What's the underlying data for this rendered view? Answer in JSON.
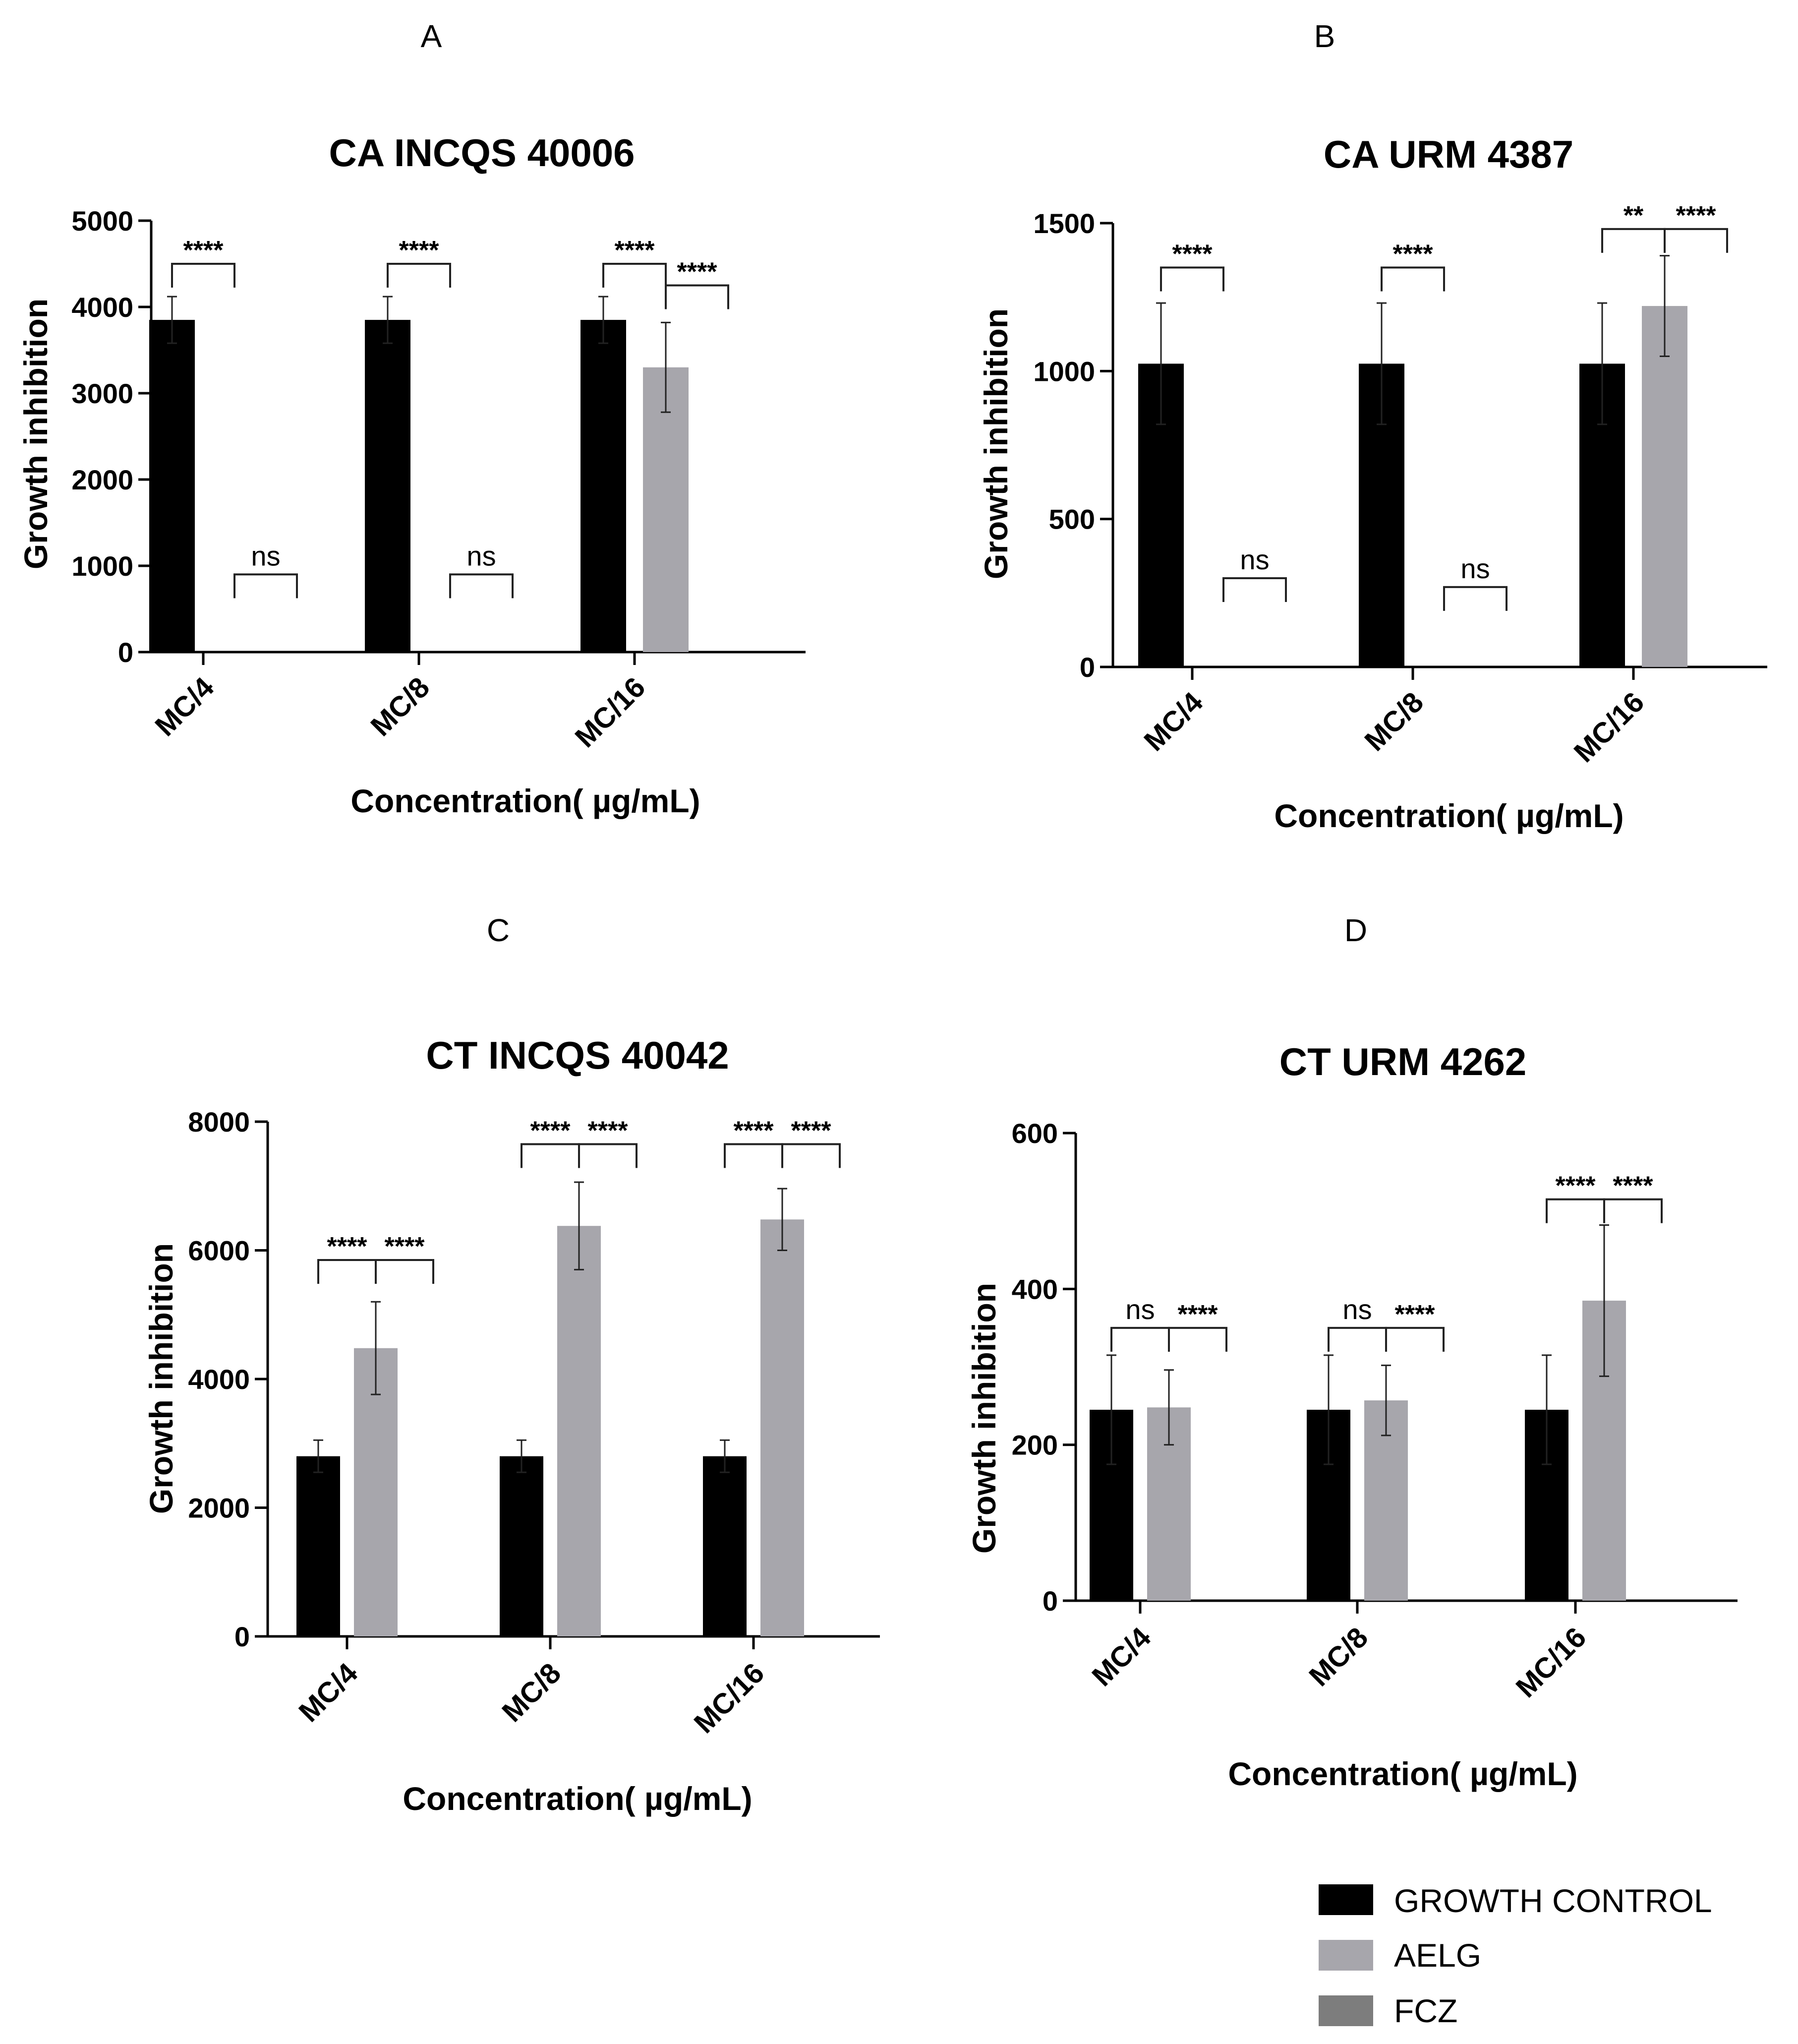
{
  "panels": [
    {
      "letter": "A"
    },
    {
      "letter": "B"
    },
    {
      "letter": "C"
    },
    {
      "letter": "D"
    }
  ],
  "colors": {
    "growth_control": "#000000",
    "aelg": "#a7a6ac",
    "fcz": "#7d7d7d"
  },
  "chart_data": [
    {
      "type": "bar",
      "title": "CA INCQS 40006",
      "xlabel": "Concentration( µg/mL)",
      "ylabel": "Growth inhibition",
      "ylim": [
        0,
        5000
      ],
      "yticks": [
        "0",
        "1000",
        "2000",
        "3000",
        "4000",
        "5000"
      ],
      "categories": [
        "MC/4",
        "MC/8",
        "MC/16"
      ],
      "series": [
        {
          "name": "GROWTH CONTROL",
          "values": [
            3850,
            3850,
            3850
          ],
          "errors": [
            270,
            270,
            270
          ]
        },
        {
          "name": "AELG",
          "values": [
            0,
            0,
            3300
          ],
          "errors": [
            0,
            0,
            520
          ]
        }
      ],
      "significance": [
        {
          "category": "MC/4",
          "label": "****",
          "pair": "growth-aelg",
          "y": 4500
        },
        {
          "category": "MC/4",
          "label": "ns",
          "pair": "aelg-fcz",
          "y": 900
        },
        {
          "category": "MC/8",
          "label": "****",
          "pair": "growth-aelg",
          "y": 4500
        },
        {
          "category": "MC/8",
          "label": "ns",
          "pair": "aelg-fcz",
          "y": 900
        },
        {
          "category": "MC/16",
          "label": "****",
          "pair": "growth-aelg",
          "y": 4500
        },
        {
          "category": "MC/16",
          "label": "****",
          "pair": "aelg-fcz",
          "y": 4250
        }
      ]
    },
    {
      "type": "bar",
      "title": "CA URM 4387",
      "xlabel": "Concentration( µg/mL)",
      "ylabel": "Growth inhibition",
      "ylim": [
        0,
        1500
      ],
      "yticks": [
        "0",
        "500",
        "1000",
        "1500"
      ],
      "categories": [
        "MC/4",
        "MC/8",
        "MC/16"
      ],
      "series": [
        {
          "name": "GROWTH CONTROL",
          "values": [
            1025,
            1025,
            1025
          ],
          "errors": [
            205,
            205,
            205
          ]
        },
        {
          "name": "AELG",
          "values": [
            0,
            0,
            1220
          ],
          "errors": [
            0,
            0,
            170
          ]
        }
      ],
      "significance": [
        {
          "category": "MC/4",
          "label": "****",
          "pair": "growth-aelg",
          "y": 1350
        },
        {
          "category": "MC/4",
          "label": "ns",
          "pair": "aelg-fcz",
          "y": 300
        },
        {
          "category": "MC/8",
          "label": "****",
          "pair": "growth-aelg",
          "y": 1350
        },
        {
          "category": "MC/8",
          "label": "ns",
          "pair": "aelg-fcz",
          "y": 270
        },
        {
          "category": "MC/16",
          "label": "**",
          "pair": "growth-aelg",
          "y": 1480
        },
        {
          "category": "MC/16",
          "label": "****",
          "pair": "aelg-fcz",
          "y": 1480
        }
      ]
    },
    {
      "type": "bar",
      "title": "CT INCQS 40042",
      "xlabel": "Concentration( µg/mL)",
      "ylabel": "Growth inhibition",
      "ylim": [
        0,
        8000
      ],
      "yticks": [
        "0",
        "2000",
        "4000",
        "6000",
        "8000"
      ],
      "categories": [
        "MC/4",
        "MC/8",
        "MC/16"
      ],
      "series": [
        {
          "name": "GROWTH CONTROL",
          "values": [
            2800,
            2800,
            2800
          ],
          "errors": [
            250,
            250,
            250
          ]
        },
        {
          "name": "AELG",
          "values": [
            4480,
            6380,
            6480
          ],
          "errors": [
            720,
            680,
            480
          ]
        }
      ],
      "significance": [
        {
          "category": "MC/4",
          "label": "****",
          "pair": "growth-aelg",
          "y": 5850
        },
        {
          "category": "MC/4",
          "label": "****",
          "pair": "aelg-fcz",
          "y": 5850
        },
        {
          "category": "MC/8",
          "label": "****",
          "pair": "growth-aelg",
          "y": 7650
        },
        {
          "category": "MC/8",
          "label": "****",
          "pair": "aelg-fcz",
          "y": 7650
        },
        {
          "category": "MC/16",
          "label": "****",
          "pair": "growth-aelg",
          "y": 7650
        },
        {
          "category": "MC/16",
          "label": "****",
          "pair": "aelg-fcz",
          "y": 7650
        }
      ]
    },
    {
      "type": "bar",
      "title": "CT URM 4262",
      "xlabel": "Concentration( µg/mL)",
      "ylabel": "Growth inhibition",
      "ylim": [
        0,
        600
      ],
      "yticks": [
        "0",
        "200",
        "400",
        "600"
      ],
      "categories": [
        "MC/4",
        "MC/8",
        "MC/16"
      ],
      "series": [
        {
          "name": "GROWTH CONTROL",
          "values": [
            245,
            245,
            245
          ],
          "errors": [
            70,
            70,
            70
          ]
        },
        {
          "name": "AELG",
          "values": [
            248,
            257,
            385
          ],
          "errors": [
            48,
            45,
            97
          ]
        }
      ],
      "significance": [
        {
          "category": "MC/4",
          "label": "ns",
          "pair": "growth-aelg",
          "y": 350
        },
        {
          "category": "MC/4",
          "label": "****",
          "pair": "aelg-fcz",
          "y": 350
        },
        {
          "category": "MC/8",
          "label": "ns",
          "pair": "growth-aelg",
          "y": 350
        },
        {
          "category": "MC/8",
          "label": "****",
          "pair": "aelg-fcz",
          "y": 350
        },
        {
          "category": "MC/16",
          "label": "****",
          "pair": "growth-aelg",
          "y": 515
        },
        {
          "category": "MC/16",
          "label": "****",
          "pair": "aelg-fcz",
          "y": 515
        }
      ]
    }
  ],
  "legend": [
    {
      "label": "GROWTH CONTROL",
      "color": "#000000"
    },
    {
      "label": "AELG",
      "color": "#a7a6ac"
    },
    {
      "label": "FCZ",
      "color": "#7d7d7d"
    }
  ]
}
